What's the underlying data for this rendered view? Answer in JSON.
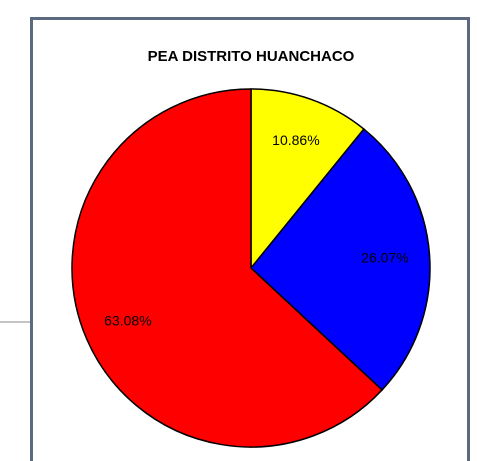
{
  "chart_data": {
    "type": "pie",
    "title": "PEA DISTRITO HUANCHACO",
    "values": [
      10.86,
      26.07,
      63.08
    ],
    "value_labels": [
      "10.86%",
      "26.07%",
      "63.08%"
    ],
    "colors": [
      "#ffff00",
      "#0000ff",
      "#ff0000"
    ]
  }
}
